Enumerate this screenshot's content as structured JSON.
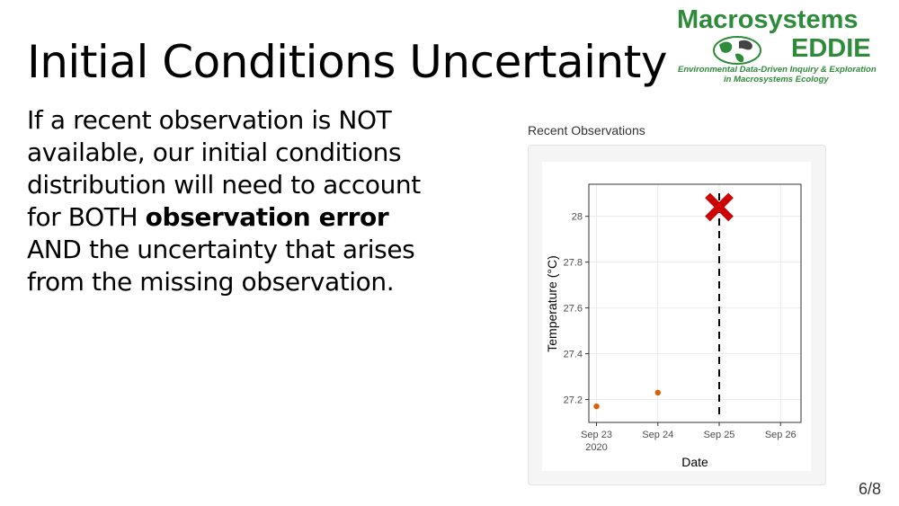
{
  "slide": {
    "title": "Initial Conditions Uncertainty",
    "body_pre": "If a recent observation is NOT available, our initial conditions distribution will need to account for BOTH ",
    "body_bold": "observation error",
    "body_post": " AND the uncertainty that arises from the missing observation.",
    "page_number": "6/8"
  },
  "logo": {
    "line1": "Macrosystems",
    "line2": "EDDIE",
    "subtitle1": "Environmental Data-Driven Inquiry & Exploration",
    "subtitle2": "in Macrosystems Ecology",
    "icon": "globe-icon",
    "color": "#2e8b3a"
  },
  "panel": {
    "label": "Recent Observations"
  },
  "chart_data": {
    "type": "scatter",
    "title": "Recent Observations",
    "xlabel": "Date",
    "ylabel": "Temperature (°C)",
    "x_ticks": [
      {
        "date": "2020-09-23",
        "label": "Sep 23",
        "sublabel": "2020"
      },
      {
        "date": "2020-09-24",
        "label": "Sep 24",
        "sublabel": ""
      },
      {
        "date": "2020-09-25",
        "label": "Sep 25",
        "sublabel": ""
      },
      {
        "date": "2020-09-26",
        "label": "Sep 26",
        "sublabel": ""
      }
    ],
    "xlim": [
      "2020-09-22 21:00",
      "2020-09-26 08:00"
    ],
    "y_ticks": [
      27.2,
      27.4,
      27.6,
      27.8,
      28
    ],
    "ylim": [
      27.1,
      28.14
    ],
    "series": [
      {
        "points": [
          {
            "x": "2020-09-23",
            "y": 27.17
          },
          {
            "x": "2020-09-24",
            "y": 27.23
          }
        ],
        "color": "#d95f02"
      }
    ],
    "annotations": [
      {
        "type": "vline",
        "x": "2020-09-25",
        "style": "dashed",
        "color": "#000000"
      },
      {
        "type": "marker-x",
        "x": "2020-09-25",
        "y": 28.04,
        "color": "#cc0000",
        "meaning": "missing observation"
      }
    ],
    "grid": true,
    "legend": "none"
  }
}
